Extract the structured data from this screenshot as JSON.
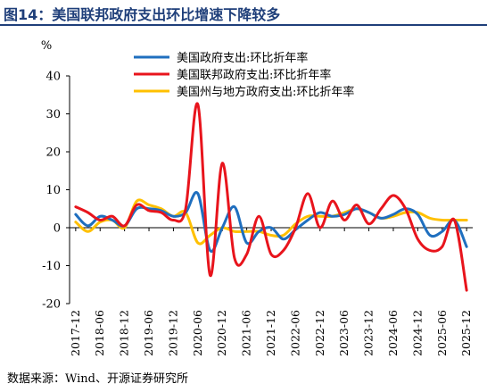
{
  "figure": {
    "title": "图14：美国联邦政府支出环比增速下降较多",
    "source": "数据来源：Wind、开源证券研究所"
  },
  "chart_data": {
    "type": "line",
    "ylabel": "%",
    "ylim": [
      -20,
      40
    ],
    "yticks": [
      -20,
      -10,
      0,
      10,
      20,
      30,
      40
    ],
    "xticks": [
      "2017-12",
      "2018-06",
      "2018-12",
      "2019-06",
      "2019-12",
      "2020-06",
      "2020-12",
      "2021-06",
      "2021-12",
      "2022-06",
      "2022-12",
      "2023-06",
      "2023-12",
      "2024-06",
      "2024-12",
      "2025-06",
      "2025-12"
    ],
    "x": [
      "2017-12",
      "2018-03",
      "2018-06",
      "2018-09",
      "2018-12",
      "2019-03",
      "2019-06",
      "2019-09",
      "2019-12",
      "2020-03",
      "2020-06",
      "2020-09",
      "2020-12",
      "2021-03",
      "2021-06",
      "2021-09",
      "2021-12",
      "2022-03",
      "2022-06",
      "2022-09",
      "2022-12",
      "2023-03",
      "2023-06",
      "2023-09",
      "2023-12",
      "2024-03",
      "2024-06",
      "2024-09",
      "2024-12",
      "2025-03",
      "2025-06",
      "2025-09",
      "2025-12"
    ],
    "legend_position": "top-center",
    "grid": false,
    "series": [
      {
        "name": "美国政府支出:环比折年率",
        "color": "#1f6fbf",
        "values": [
          3.5,
          0.5,
          3,
          2,
          0.5,
          5,
          5,
          4.5,
          3,
          4,
          9,
          -6,
          0,
          5.5,
          -4,
          -1,
          0,
          -3,
          -0.5,
          2,
          4,
          3,
          3.5,
          5,
          4,
          2.5,
          3.5,
          5,
          3.5,
          -2,
          -1,
          2,
          -5
        ]
      },
      {
        "name": "美国联邦政府支出:环比折年率",
        "color": "#e8141c",
        "values": [
          5.5,
          4,
          2,
          3,
          0.5,
          6,
          4.5,
          4,
          2,
          5,
          32.5,
          -12.5,
          17,
          -8,
          -7,
          3,
          -7,
          -6,
          0,
          9,
          0,
          7,
          2,
          6,
          1,
          5,
          8.5,
          5,
          -3,
          -6,
          -5,
          2,
          -16.5
        ]
      },
      {
        "name": "美国州与地方政府支出:环比折年率",
        "color": "#ffc000",
        "values": [
          1.5,
          -1,
          1.5,
          2,
          0,
          7,
          6,
          5,
          3,
          4,
          -4,
          -2,
          0,
          -1,
          -1,
          -1,
          -2,
          -2,
          1,
          3,
          3,
          3,
          4,
          5,
          4,
          2.5,
          3,
          4,
          4,
          2.5,
          2,
          2,
          2
        ]
      }
    ]
  }
}
